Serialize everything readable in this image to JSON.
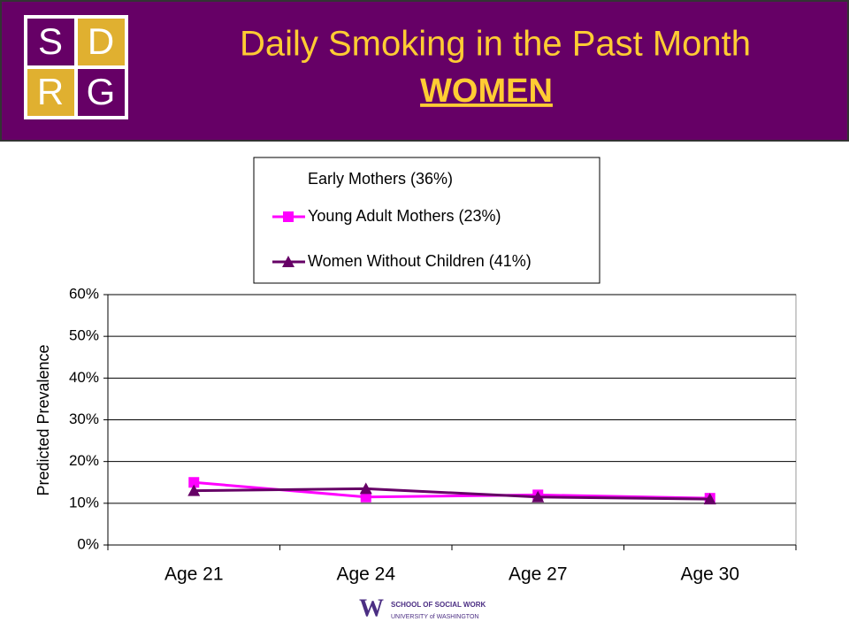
{
  "logo": {
    "letters": [
      "S",
      "D",
      "R",
      "G"
    ]
  },
  "chart_data": {
    "type": "line",
    "title": "Daily Smoking in the Past Month",
    "subtitle": "WOMEN",
    "y_label": "Predicted Prevalence",
    "categories": [
      "Age 21",
      "Age 24",
      "Age 27",
      "Age 30"
    ],
    "series": [
      {
        "name": "Early Mothers (36%)",
        "color": "#ffffff",
        "marker": "none",
        "values": [
          null,
          null,
          null,
          null
        ]
      },
      {
        "name": "Young Adult Mothers (23%)",
        "color": "#ff00ff",
        "marker": "square",
        "values": [
          15,
          11.5,
          12,
          11.2
        ]
      },
      {
        "name": "Women Without Children (41%)",
        "color": "#660066",
        "marker": "triangle",
        "values": [
          13,
          13.5,
          11.5,
          11
        ]
      }
    ],
    "ylim": [
      0,
      60
    ],
    "yticks": [
      {
        "value": 0,
        "label": "0%"
      },
      {
        "value": 10,
        "label": "10%"
      },
      {
        "value": 20,
        "label": "20%"
      },
      {
        "value": 30,
        "label": "30%"
      },
      {
        "value": 40,
        "label": "40%"
      },
      {
        "value": 50,
        "label": "50%"
      },
      {
        "value": 60,
        "label": "60%"
      }
    ],
    "grid": true
  },
  "footer": {
    "line1": "SCHOOL OF SOCIAL WORK",
    "line2": "UNIVERSITY of WASHINGTON"
  }
}
